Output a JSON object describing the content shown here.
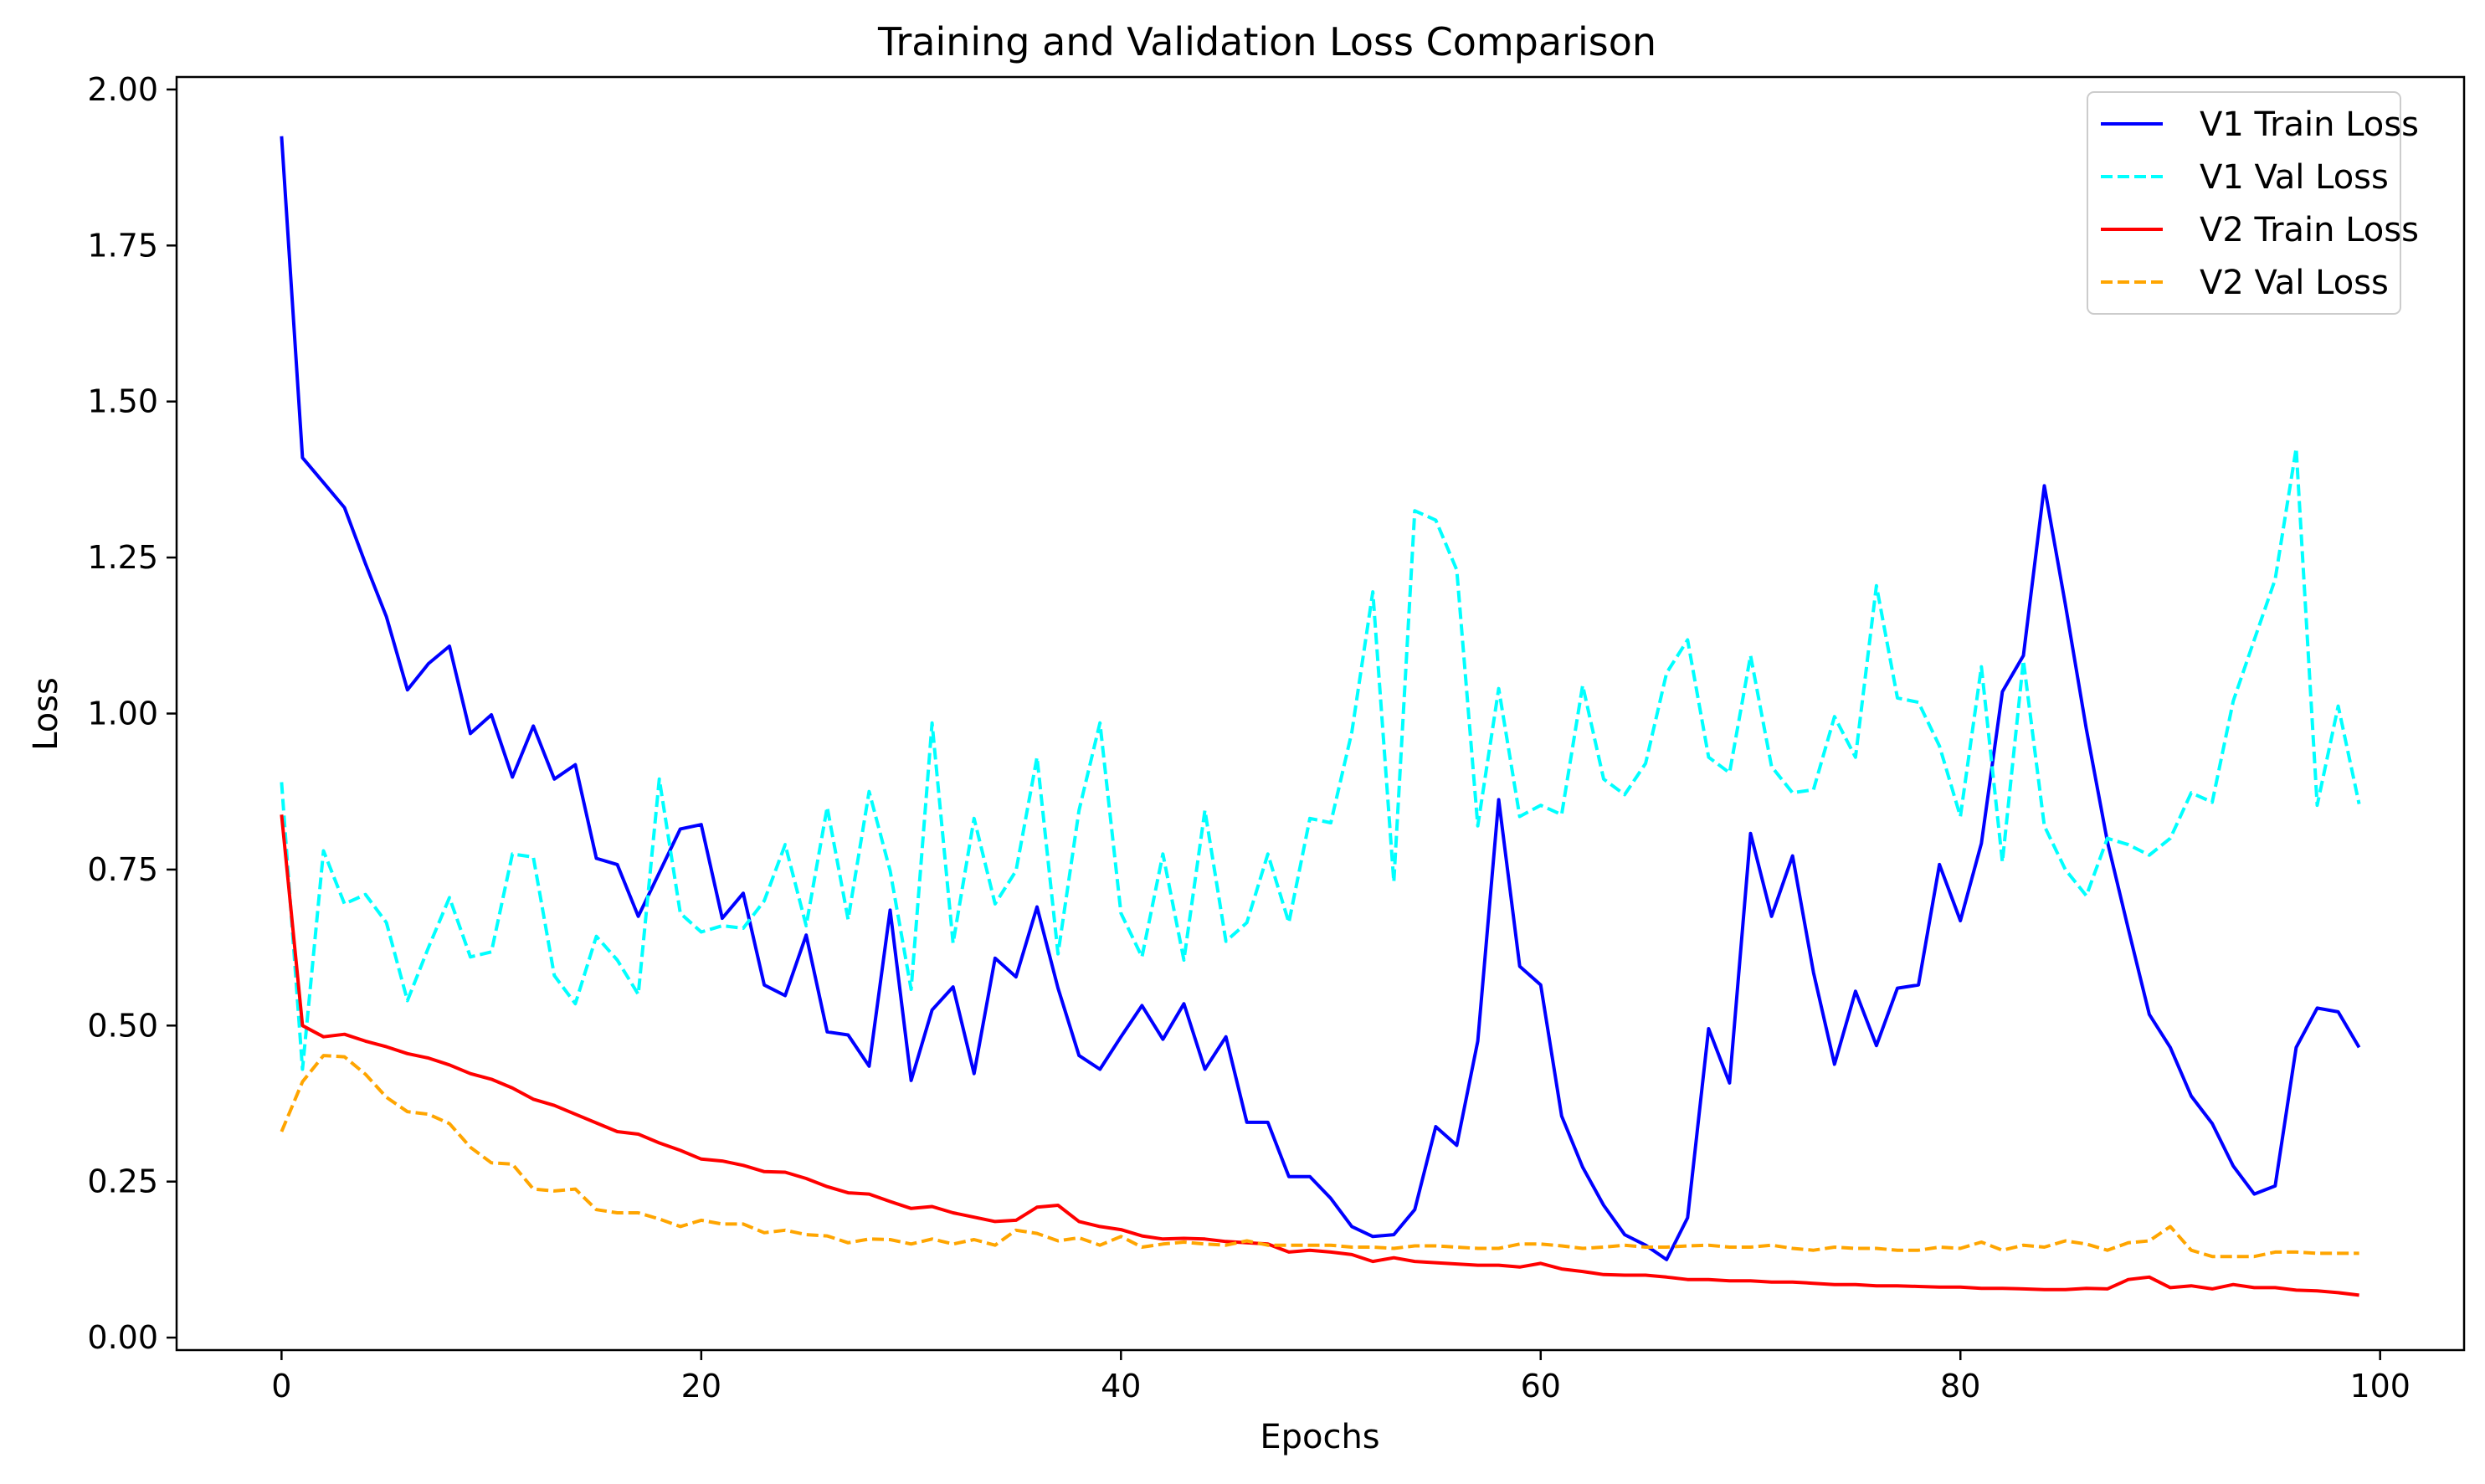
{
  "chart_data": {
    "type": "line",
    "title": "Training and Validation Loss Comparison",
    "xlabel": "Epochs",
    "ylabel": "Loss",
    "xlim": [
      -5,
      104
    ],
    "ylim": [
      -0.02,
      2.02
    ],
    "xticks": [
      0,
      20,
      40,
      60,
      80,
      100
    ],
    "yticks": [
      0.0,
      0.25,
      0.5,
      0.75,
      1.0,
      1.25,
      1.5,
      1.75,
      2.0
    ],
    "xtick_labels": [
      "0",
      "20",
      "40",
      "60",
      "80",
      "100"
    ],
    "ytick_labels": [
      "0.00",
      "0.25",
      "0.50",
      "0.75",
      "1.00",
      "1.25",
      "1.50",
      "1.75",
      "2.00"
    ],
    "grid": false,
    "legend_position": "top-right",
    "x": [
      0,
      1,
      2,
      3,
      4,
      5,
      6,
      7,
      8,
      9,
      10,
      11,
      12,
      13,
      14,
      15,
      16,
      17,
      18,
      19,
      20,
      21,
      22,
      23,
      24,
      25,
      26,
      27,
      28,
      29,
      30,
      31,
      32,
      33,
      34,
      35,
      36,
      37,
      38,
      39,
      40,
      41,
      42,
      43,
      44,
      45,
      46,
      47,
      48,
      49,
      50,
      51,
      52,
      53,
      54,
      55,
      56,
      57,
      58,
      59,
      60,
      61,
      62,
      63,
      64,
      65,
      66,
      67,
      68,
      69,
      70,
      71,
      72,
      73,
      74,
      75,
      76,
      77,
      78,
      79,
      80,
      81,
      82,
      83,
      84,
      85,
      86,
      87,
      88,
      89,
      90,
      91,
      92,
      93,
      94,
      95,
      96,
      97,
      98,
      99
    ],
    "series": [
      {
        "name": "V1 Train Loss",
        "color": "#0000ff",
        "dash": "solid",
        "values": [
          1.925,
          1.41,
          1.37,
          1.33,
          1.24,
          1.155,
          1.038,
          1.08,
          1.108,
          0.968,
          0.998,
          0.898,
          0.98,
          0.895,
          0.918,
          0.768,
          0.758,
          0.675,
          0.745,
          0.815,
          0.822,
          0.672,
          0.712,
          0.565,
          0.548,
          0.645,
          0.49,
          0.485,
          0.435,
          0.685,
          0.412,
          0.525,
          0.562,
          0.423,
          0.608,
          0.578,
          0.69,
          0.56,
          0.452,
          0.43,
          0.482,
          0.532,
          0.478,
          0.535,
          0.43,
          0.482,
          0.345,
          0.345,
          0.258,
          0.258,
          0.223,
          0.178,
          0.162,
          0.165,
          0.205,
          0.338,
          0.308,
          0.475,
          0.862,
          0.595,
          0.565,
          0.355,
          0.273,
          0.212,
          0.165,
          0.148,
          0.125,
          0.192,
          0.495,
          0.408,
          0.808,
          0.675,
          0.772,
          0.585,
          0.438,
          0.555,
          0.468,
          0.56,
          0.565,
          0.758,
          0.668,
          0.792,
          1.035,
          1.093,
          1.365,
          1.175,
          0.975,
          0.795,
          0.655,
          0.518,
          0.465,
          0.387,
          0.343,
          0.275,
          0.23,
          0.243,
          0.465,
          0.528,
          0.522,
          0.465
        ]
      },
      {
        "name": "V1 Val Loss",
        "color": "#00ffff",
        "dash": "dashed",
        "values": [
          0.89,
          0.43,
          0.78,
          0.695,
          0.71,
          0.665,
          0.54,
          0.625,
          0.705,
          0.61,
          0.618,
          0.775,
          0.77,
          0.58,
          0.535,
          0.643,
          0.605,
          0.55,
          0.895,
          0.68,
          0.65,
          0.66,
          0.656,
          0.7,
          0.79,
          0.66,
          0.85,
          0.67,
          0.875,
          0.748,
          0.558,
          0.985,
          0.632,
          0.832,
          0.695,
          0.748,
          0.93,
          0.615,
          0.845,
          0.985,
          0.68,
          0.61,
          0.775,
          0.605,
          0.845,
          0.635,
          0.665,
          0.775,
          0.665,
          0.832,
          0.825,
          0.97,
          1.195,
          0.73,
          1.325,
          1.31,
          1.23,
          0.82,
          1.04,
          0.835,
          0.853,
          0.838,
          1.045,
          0.895,
          0.87,
          0.92,
          1.065,
          1.118,
          0.93,
          0.905,
          1.093,
          0.915,
          0.873,
          0.878,
          0.995,
          0.93,
          1.205,
          1.025,
          1.018,
          0.948,
          0.835,
          1.075,
          0.762,
          1.085,
          0.82,
          0.75,
          0.708,
          0.8,
          0.79,
          0.773,
          0.8,
          0.873,
          0.858,
          1.02,
          1.118,
          1.215,
          1.425,
          0.853,
          1.012,
          0.855
        ]
      },
      {
        "name": "V2 Train Loss",
        "color": "#ff0000",
        "dash": "solid",
        "values": [
          0.838,
          0.5,
          0.482,
          0.486,
          0.475,
          0.466,
          0.455,
          0.448,
          0.437,
          0.423,
          0.414,
          0.4,
          0.382,
          0.372,
          0.358,
          0.344,
          0.33,
          0.326,
          0.312,
          0.3,
          0.286,
          0.283,
          0.276,
          0.266,
          0.265,
          0.255,
          0.242,
          0.232,
          0.23,
          0.218,
          0.207,
          0.21,
          0.2,
          0.193,
          0.186,
          0.188,
          0.209,
          0.212,
          0.186,
          0.178,
          0.173,
          0.163,
          0.158,
          0.159,
          0.158,
          0.154,
          0.152,
          0.15,
          0.137,
          0.14,
          0.137,
          0.133,
          0.122,
          0.128,
          0.122,
          0.12,
          0.118,
          0.116,
          0.116,
          0.113,
          0.119,
          0.11,
          0.106,
          0.101,
          0.1,
          0.1,
          0.097,
          0.093,
          0.093,
          0.091,
          0.091,
          0.089,
          0.089,
          0.087,
          0.085,
          0.085,
          0.083,
          0.083,
          0.082,
          0.081,
          0.081,
          0.079,
          0.079,
          0.078,
          0.077,
          0.077,
          0.079,
          0.078,
          0.093,
          0.097,
          0.08,
          0.083,
          0.078,
          0.085,
          0.08,
          0.08,
          0.076,
          0.075,
          0.072,
          0.068
        ]
      },
      {
        "name": "V2 Val Loss",
        "color": "#ffa500",
        "dash": "dashed",
        "values": [
          0.33,
          0.41,
          0.452,
          0.45,
          0.422,
          0.385,
          0.362,
          0.358,
          0.343,
          0.305,
          0.28,
          0.278,
          0.238,
          0.235,
          0.238,
          0.205,
          0.2,
          0.2,
          0.19,
          0.178,
          0.188,
          0.182,
          0.182,
          0.168,
          0.172,
          0.165,
          0.163,
          0.152,
          0.158,
          0.157,
          0.15,
          0.158,
          0.15,
          0.157,
          0.148,
          0.172,
          0.167,
          0.155,
          0.16,
          0.148,
          0.162,
          0.145,
          0.15,
          0.153,
          0.15,
          0.148,
          0.155,
          0.148,
          0.148,
          0.148,
          0.148,
          0.145,
          0.145,
          0.143,
          0.147,
          0.147,
          0.145,
          0.143,
          0.143,
          0.15,
          0.15,
          0.147,
          0.143,
          0.145,
          0.148,
          0.145,
          0.145,
          0.147,
          0.148,
          0.145,
          0.145,
          0.148,
          0.143,
          0.14,
          0.145,
          0.143,
          0.143,
          0.14,
          0.14,
          0.145,
          0.143,
          0.153,
          0.14,
          0.148,
          0.145,
          0.155,
          0.15,
          0.14,
          0.152,
          0.155,
          0.178,
          0.14,
          0.13,
          0.13,
          0.13,
          0.137,
          0.137,
          0.135,
          0.135,
          0.135
        ]
      }
    ]
  }
}
